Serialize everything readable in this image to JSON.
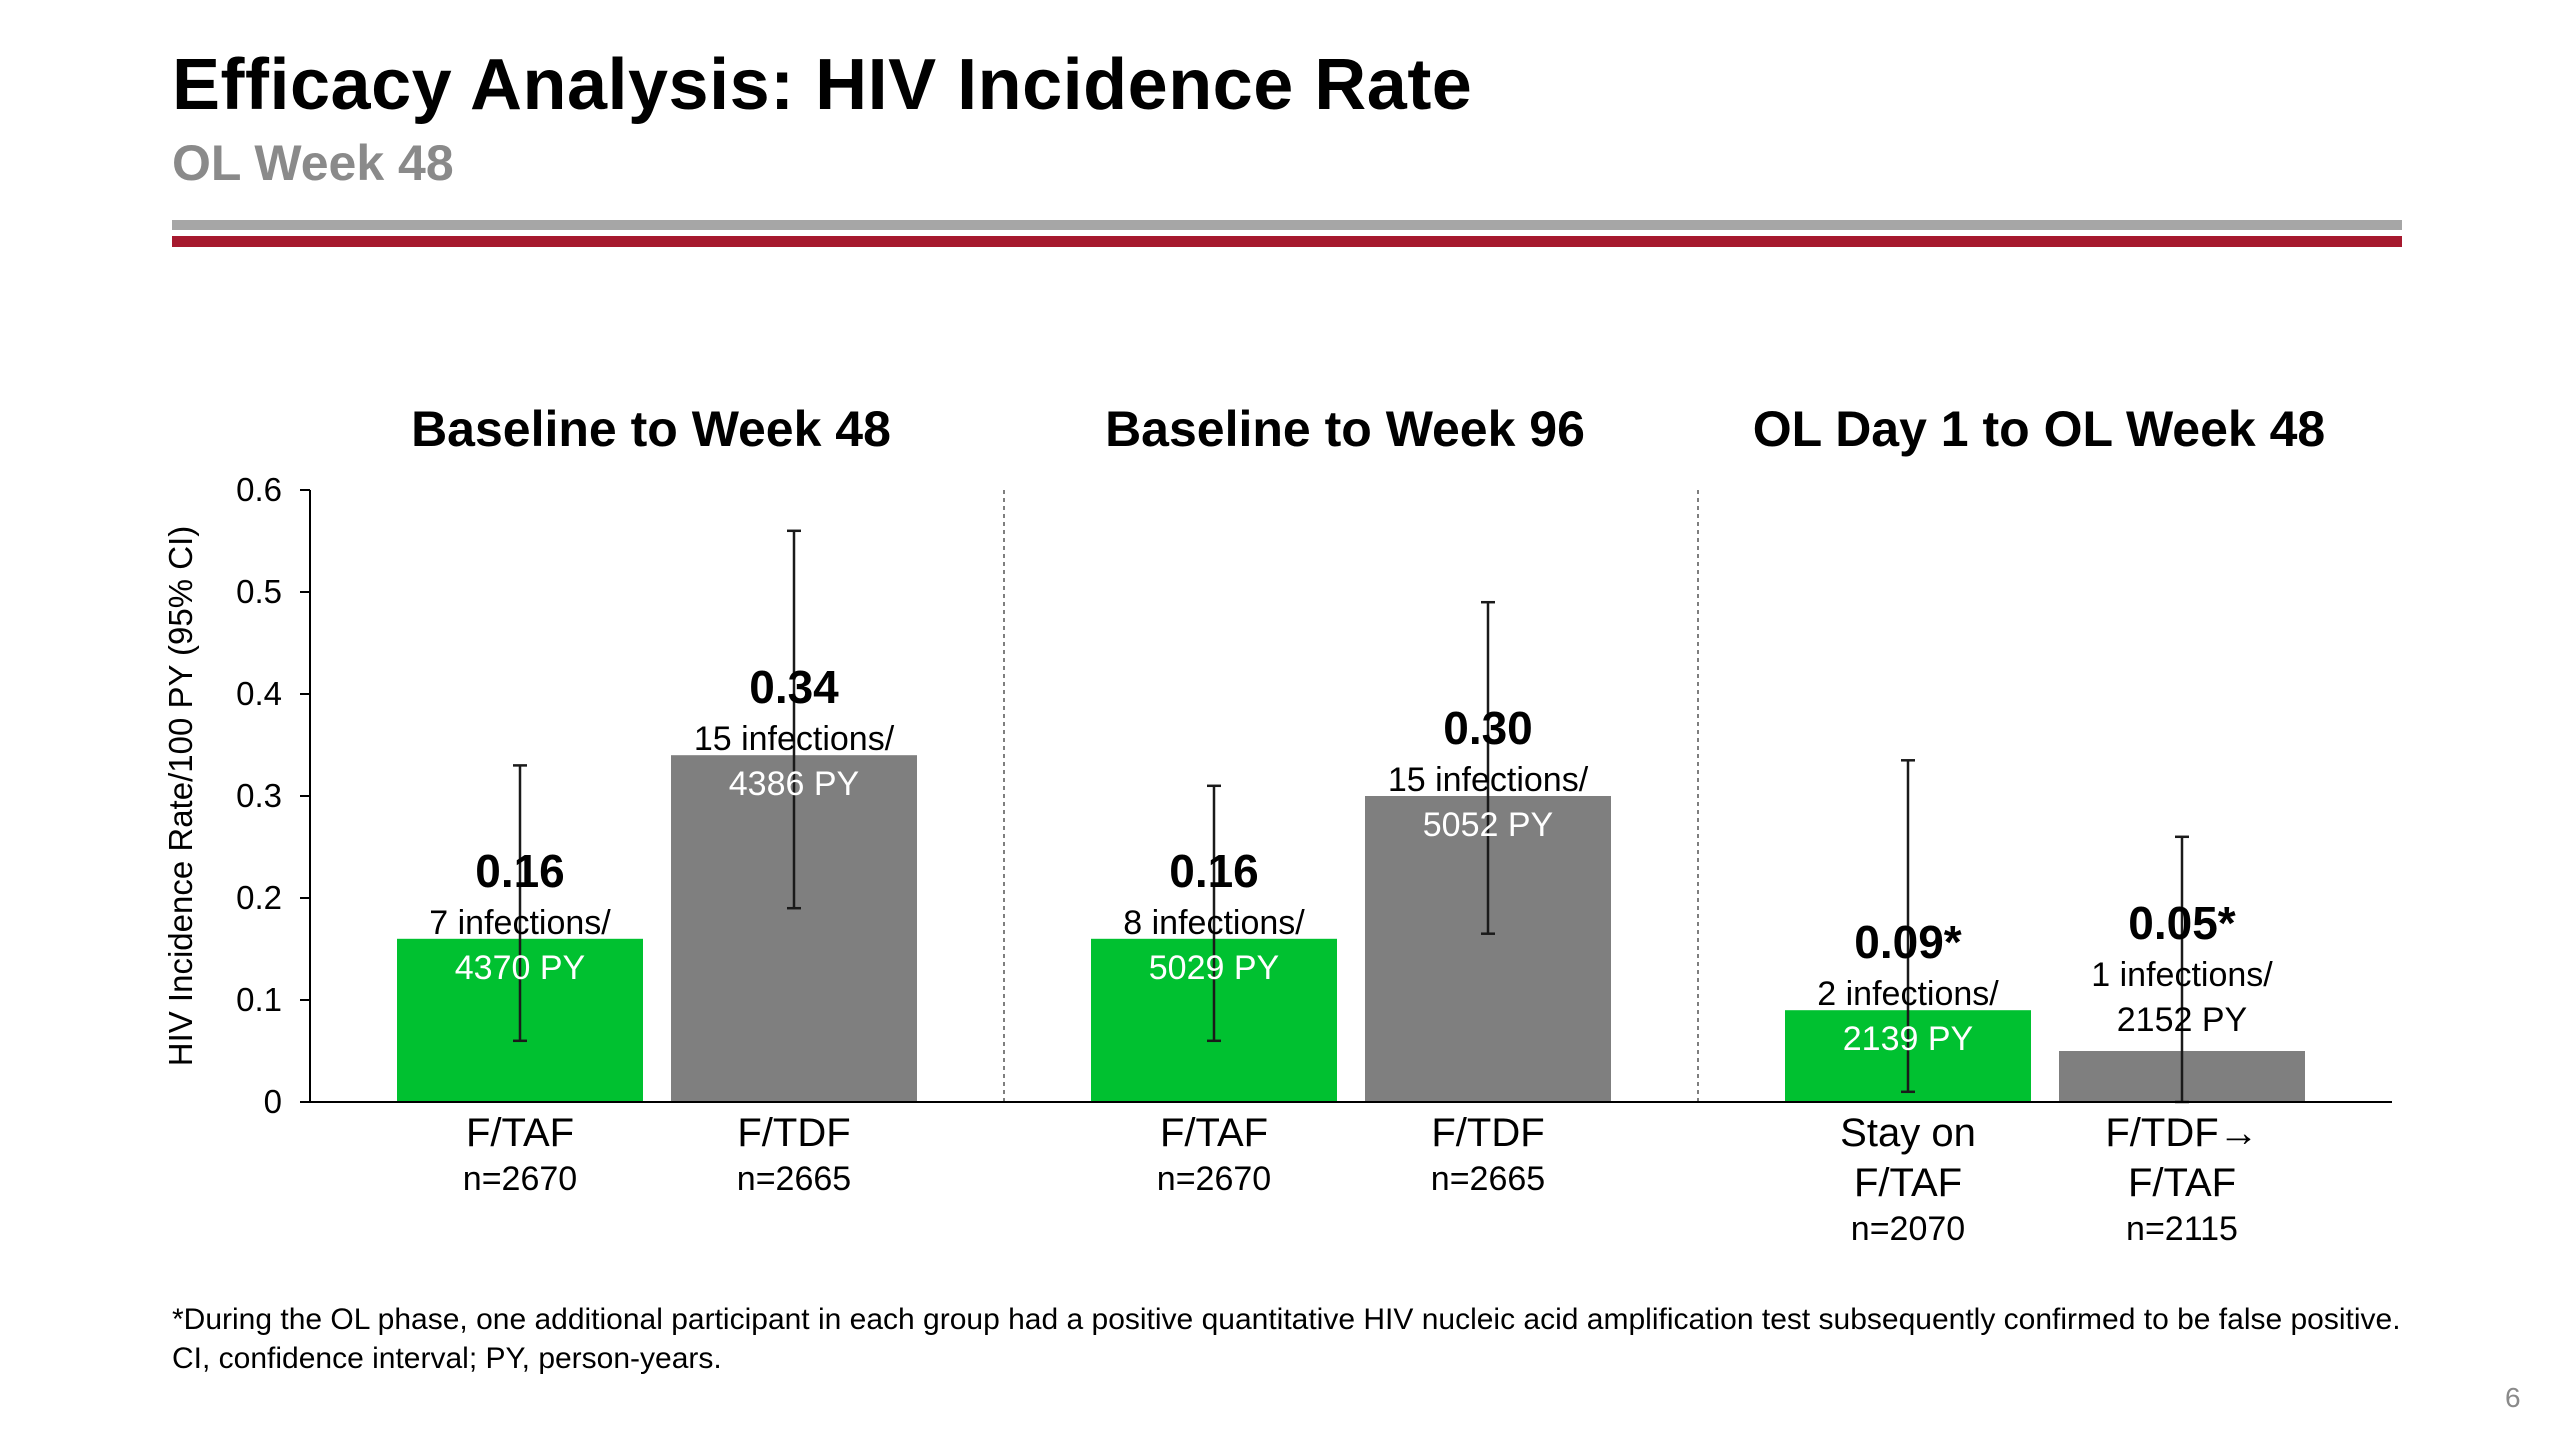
{
  "slide": {
    "title": "Efficacy Analysis: HIV Incidence Rate",
    "subtitle": "OL Week 48",
    "footnote_line1": "*During the OL phase, one additional participant in each group had a positive quantitative HIV nucleic acid amplification test subsequently confirmed to be false positive.",
    "footnote_line2": "CI, confidence interval; PY, person-years.",
    "page_number": "6"
  },
  "colors": {
    "taf_green": "#00c130",
    "tdf_gray": "#7f7f7f",
    "rule_gray": "#a6a6a6",
    "rule_red": "#a6192e"
  },
  "chart_data": {
    "type": "bar",
    "ylabel": "HIV Incidence Rate/100 PY (95% CI)",
    "ylim": [
      0,
      0.6
    ],
    "yticks": [
      "0",
      "0.1",
      "0.2",
      "0.3",
      "0.4",
      "0.5",
      "0.6"
    ],
    "grid": false,
    "panels": [
      {
        "title": "Baseline to Week 48",
        "bars": [
          {
            "category_lines": [
              "F/TAF"
            ],
            "n_label": "n=2670",
            "value": 0.16,
            "ci": [
              0.06,
              0.33
            ],
            "value_label": "0.16",
            "infections_label": "7 infections/",
            "py_label": "4370 PY",
            "color_key": "taf_green"
          },
          {
            "category_lines": [
              "F/TDF"
            ],
            "n_label": "n=2665",
            "value": 0.34,
            "ci": [
              0.19,
              0.56
            ],
            "value_label": "0.34",
            "infections_label": "15 infections/",
            "py_label": "4386 PY",
            "color_key": "tdf_gray"
          }
        ]
      },
      {
        "title": "Baseline to Week 96",
        "bars": [
          {
            "category_lines": [
              "F/TAF"
            ],
            "n_label": "n=2670",
            "value": 0.16,
            "ci": [
              0.06,
              0.31
            ],
            "value_label": "0.16",
            "infections_label": "8 infections/",
            "py_label": "5029 PY",
            "color_key": "taf_green"
          },
          {
            "category_lines": [
              "F/TDF"
            ],
            "n_label": "n=2665",
            "value": 0.3,
            "ci": [
              0.165,
              0.49
            ],
            "value_label": "0.30",
            "infections_label": "15 infections/",
            "py_label": "5052 PY",
            "color_key": "tdf_gray"
          }
        ]
      },
      {
        "title": "OL Day 1 to OL Week 48",
        "bars": [
          {
            "category_lines": [
              "Stay on",
              "F/TAF"
            ],
            "n_label": "n=2070",
            "value": 0.09,
            "ci": [
              0.01,
              0.335
            ],
            "value_label": "0.09*",
            "infections_label": "2 infections/",
            "py_label": "2139 PY",
            "color_key": "taf_green"
          },
          {
            "category_lines": [
              "F/TDF→",
              "F/TAF"
            ],
            "n_label": "n=2115",
            "value": 0.05,
            "ci": [
              0.0,
              0.26
            ],
            "value_label": "0.05*",
            "infections_label": "1 infections/",
            "py_label": "2152 PY",
            "color_key": "tdf_gray"
          }
        ]
      }
    ]
  }
}
